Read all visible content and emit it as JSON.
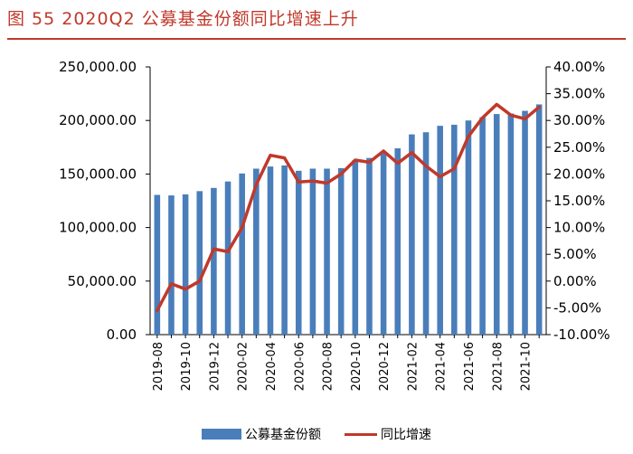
{
  "figure": {
    "title": "图 55    2020Q2 公募基金份额同比增速上升"
  },
  "colors": {
    "bar": "#4a7ebb",
    "line": "#c0392b",
    "title": "#c0392b"
  },
  "chart_data": {
    "type": "bar",
    "title": "2020Q2 公募基金份额同比增速上升",
    "categories": [
      "2019-08",
      "2019-09",
      "2019-10",
      "2019-11",
      "2019-12",
      "2020-01",
      "2020-02",
      "2020-03",
      "2020-04",
      "2020-05",
      "2020-06",
      "2020-07",
      "2020-08",
      "2020-09",
      "2020-10",
      "2020-11",
      "2020-12",
      "2021-01",
      "2021-02",
      "2021-03",
      "2021-04",
      "2021-05",
      "2021-06",
      "2021-07",
      "2021-08",
      "2021-09",
      "2021-10",
      "2021-11"
    ],
    "x_tick_labels": [
      "2019-08",
      "2019-10",
      "2019-12",
      "2020-02",
      "2020-04",
      "2020-06",
      "2020-08",
      "2020-10",
      "2020-12",
      "2021-02",
      "2021-04",
      "2021-06",
      "2021-08",
      "2021-10"
    ],
    "series": [
      {
        "name": "公募基金份额",
        "type": "bar",
        "axis": "left",
        "values": [
          130500,
          130000,
          131000,
          134000,
          137000,
          143000,
          150500,
          155000,
          157000,
          158000,
          153000,
          155000,
          155000,
          155500,
          163000,
          165000,
          170000,
          174000,
          187000,
          189000,
          195000,
          196000,
          200000,
          203000,
          206000,
          206500,
          209000,
          215000
        ]
      },
      {
        "name": "同比增速",
        "type": "line",
        "axis": "right",
        "values": [
          -5.5,
          -0.5,
          -1.5,
          0.0,
          6.0,
          5.5,
          10.0,
          18.0,
          23.5,
          23.0,
          18.5,
          18.7,
          18.3,
          20.0,
          22.6,
          22.2,
          24.3,
          22.0,
          24.0,
          21.5,
          19.5,
          21.0,
          27.0,
          30.5,
          33.0,
          31.0,
          30.3,
          32.5
        ]
      }
    ],
    "y_left": {
      "min": 0,
      "max": 250000,
      "ticks": [
        "0.00",
        "50,000.00",
        "100,000.00",
        "150,000.00",
        "200,000.00",
        "250,000.00"
      ]
    },
    "y_right": {
      "min": -10,
      "max": 40,
      "ticks": [
        "-10.00%",
        "-5.00%",
        "0.00%",
        "5.00%",
        "10.00%",
        "15.00%",
        "20.00%",
        "25.00%",
        "30.00%",
        "35.00%",
        "40.00%"
      ]
    },
    "legend": [
      "公募基金份额",
      "同比增速"
    ],
    "legend_position": "bottom"
  }
}
